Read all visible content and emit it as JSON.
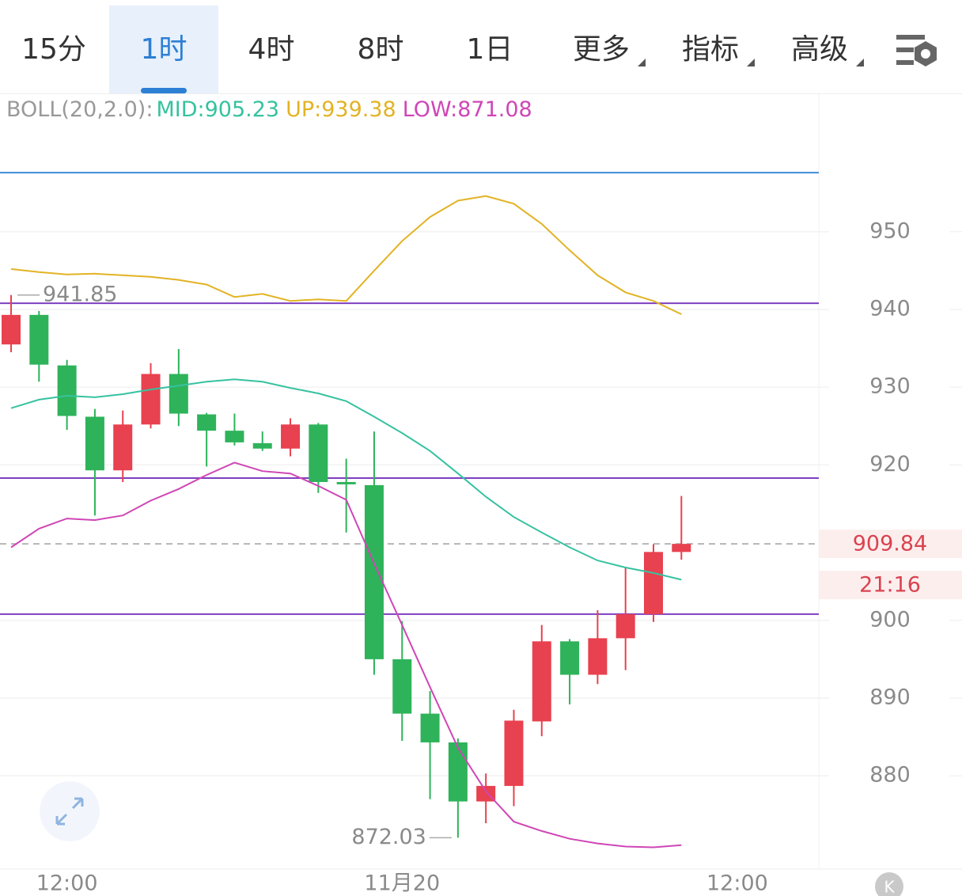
{
  "tabs": {
    "items": [
      "15分",
      "1时",
      "4时",
      "8时",
      "1日",
      "更多",
      "指标",
      "高级"
    ],
    "selected": 1
  },
  "chart_data": {
    "type": "candlestick",
    "indicator": "BOLL(20,2.0):",
    "open": [
      935.5,
      939.3,
      932.8,
      926.2,
      919.3,
      925.2,
      931.7,
      926.5,
      924.4,
      922.8,
      922.1,
      925.2,
      917.8,
      917.4,
      895.0,
      888.0,
      884.3,
      876.7,
      878.7,
      887.0,
      897.3,
      893.0,
      897.7,
      900.8,
      908.8
    ],
    "high": [
      941.85,
      939.8,
      933.5,
      927.2,
      927.0,
      933.1,
      934.9,
      926.7,
      926.6,
      924.3,
      926.0,
      925.4,
      920.8,
      924.3,
      899.9,
      890.9,
      884.8,
      880.3,
      888.5,
      899.4,
      897.6,
      901.3,
      906.9,
      909.8,
      916.0
    ],
    "low": [
      934.5,
      930.7,
      924.5,
      913.5,
      917.8,
      924.7,
      925.0,
      919.8,
      922.5,
      921.8,
      921.1,
      916.4,
      911.3,
      893.0,
      884.5,
      877.0,
      872.03,
      873.9,
      876.1,
      885.1,
      889.2,
      891.8,
      893.6,
      899.8,
      907.8
    ],
    "close": [
      939.3,
      932.9,
      926.3,
      919.3,
      925.2,
      931.7,
      926.6,
      924.4,
      922.9,
      922.1,
      925.2,
      917.8,
      917.5,
      895.0,
      888.0,
      884.3,
      876.7,
      878.7,
      887.1,
      897.3,
      893.0,
      897.7,
      900.8,
      908.8,
      909.84
    ],
    "up_color": "#e8414f",
    "down_color": "#2eb35a",
    "series": [
      {
        "name": "MID:",
        "color": "#36c2a0",
        "values": [
          927.3,
          928.4,
          928.9,
          928.7,
          929.1,
          929.7,
          930.2,
          930.7,
          931.0,
          930.7,
          929.9,
          929.2,
          928.2,
          926.2,
          924.1,
          921.8,
          918.9,
          915.9,
          913.3,
          911.3,
          909.4,
          907.7,
          906.8,
          906.1,
          905.23
        ]
      },
      {
        "name": "UP:",
        "color": "#e2b324",
        "values": [
          945.2,
          944.8,
          944.5,
          944.6,
          944.4,
          944.2,
          943.8,
          943.2,
          941.6,
          942.0,
          941.1,
          941.3,
          941.1,
          945.0,
          948.8,
          951.9,
          954.0,
          954.6,
          953.6,
          951.0,
          947.6,
          944.4,
          942.2,
          941.1,
          939.38
        ]
      },
      {
        "name": "LOW:",
        "color": "#cf46b6",
        "values": [
          909.4,
          911.8,
          913.1,
          912.9,
          913.5,
          915.4,
          916.9,
          918.7,
          920.3,
          919.2,
          918.9,
          917.3,
          915.5,
          907.3,
          899.4,
          891.4,
          883.6,
          878.0,
          874.1,
          872.9,
          871.9,
          871.3,
          870.9,
          870.8,
          871.08
        ]
      }
    ],
    "ylim": [
      868,
      968
    ],
    "yticks": [
      880,
      890,
      900,
      920,
      930,
      940,
      950
    ],
    "xlim": [
      -0.397,
      28.92
    ],
    "xticks": [
      {
        "value": 2,
        "label": "12:00"
      },
      {
        "value": 14,
        "label": "11月20"
      },
      {
        "value": 26,
        "label": "12:00"
      }
    ],
    "grid": true,
    "levels": [
      {
        "value": 957.6,
        "color": "#3b8fd8"
      },
      {
        "value": 940.8,
        "color": "#7d3fc0"
      },
      {
        "value": 918.3,
        "color": "#7d3fc0"
      },
      {
        "value": 900.8,
        "color": "#7d3fc0"
      }
    ],
    "countdown": "21:16",
    "badge": "K"
  }
}
